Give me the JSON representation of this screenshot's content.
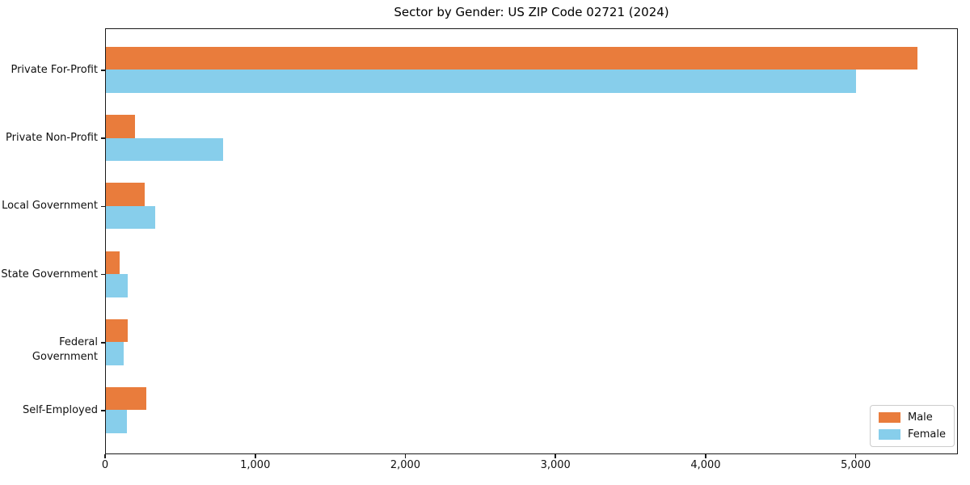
{
  "title": "Sector by Gender: US ZIP Code 02721 (2024)",
  "chart_data": {
    "type": "bar",
    "orientation": "horizontal",
    "title": "Sector by Gender: US ZIP Code 02721 (2024)",
    "categories": [
      "Private For-Profit",
      "Private Non-Profit",
      "Local Government",
      "State Government",
      "Federal Government",
      "Self-Employed"
    ],
    "series": [
      {
        "name": "Male",
        "color": "#e97c3c",
        "values": [
          5420,
          195,
          260,
          90,
          145,
          270
        ]
      },
      {
        "name": "Female",
        "color": "#87ceeb",
        "values": [
          5010,
          785,
          330,
          145,
          120,
          140
        ]
      }
    ],
    "xlabel": "",
    "ylabel": "",
    "xlim": [
      0,
      5680
    ],
    "x_ticks": [
      0,
      1000,
      2000,
      3000,
      4000,
      5000
    ],
    "x_tick_labels": [
      "0",
      "1,000",
      "2,000",
      "3,000",
      "4,000",
      "5,000"
    ],
    "grid": false,
    "legend_position": "lower right",
    "legend_labels": [
      "Male",
      "Female"
    ]
  },
  "colors": {
    "male": "#e97c3c",
    "female": "#87ceeb",
    "spine": "#1a1a1a",
    "legend_border": "#cccccc",
    "background": "#ffffff"
  }
}
